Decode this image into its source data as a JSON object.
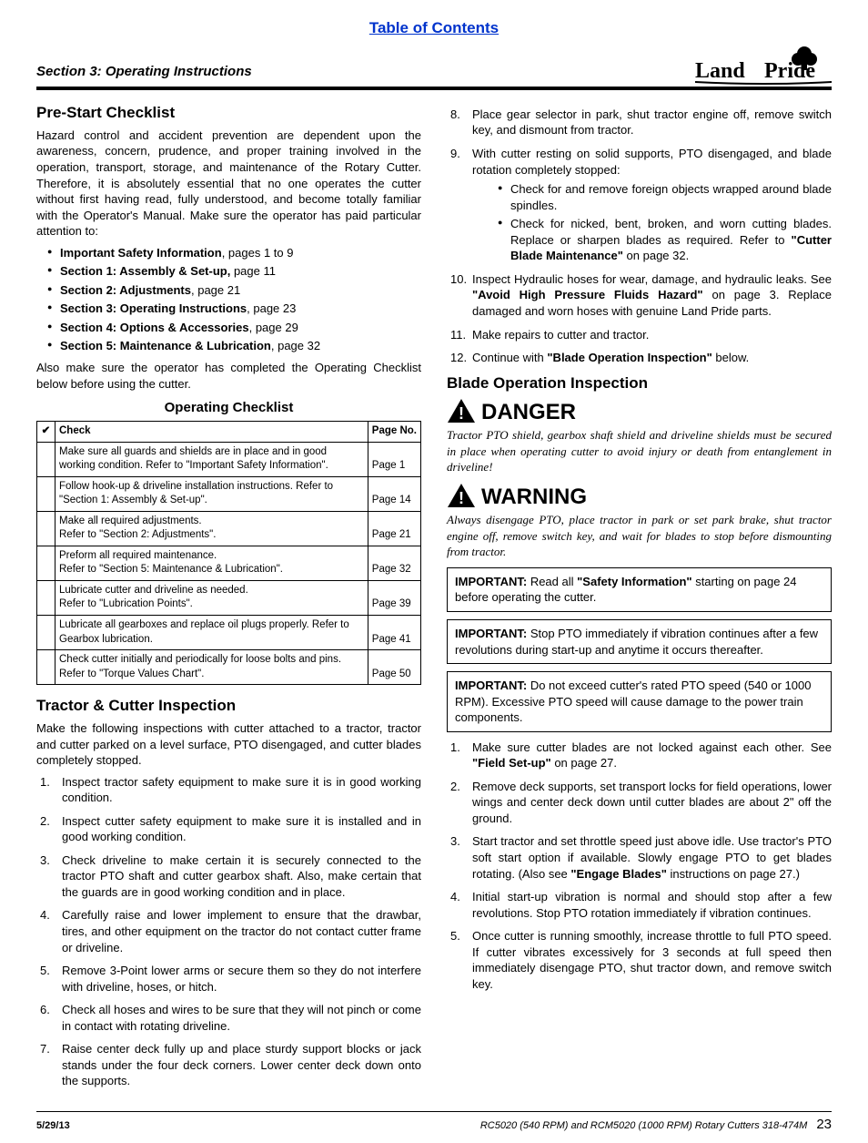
{
  "toc_link": "Table of Contents",
  "section_label": "Section 3: Operating Instructions",
  "logo_text": "Land Pride",
  "colors": {
    "link": "#0033cc",
    "rule": "#000000",
    "text": "#000000",
    "bg": "#ffffff"
  },
  "left": {
    "h1": "Pre-Start Checklist",
    "intro": "Hazard control and accident prevention are dependent upon the awareness, concern, prudence, and proper training involved in the operation, transport, storage, and maintenance of the Rotary Cutter. Therefore, it is absolutely essential that no one operates the cutter without first having read, fully understood, and become totally familiar with the Operator's Manual. Make sure the operator has paid particular attention to:",
    "bullets": [
      {
        "bold": "Important Safety Information",
        "rest": ", pages 1 to 9"
      },
      {
        "bold": "Section 1: Assembly & Set-up,",
        "rest": " page 11"
      },
      {
        "bold": "Section 2: Adjustments",
        "rest": ", page 21"
      },
      {
        "bold": "Section 3: Operating Instructions",
        "rest": ", page 23"
      },
      {
        "bold": "Section 4: Options & Accessories",
        "rest": ", page 29"
      },
      {
        "bold": "Section 5: Maintenance & Lubrication",
        "rest": ", page 32"
      }
    ],
    "after_bullets": "Also make sure the operator has completed the Operating Checklist below before using the cutter.",
    "checklist_title": "Operating Checklist",
    "checklist_headers": {
      "chk": "✔",
      "item": "Check",
      "page": "Page No."
    },
    "checklist_rows": [
      {
        "item": "Make sure all guards and shields are in place and in good working condition. Refer to \"Important Safety Information\".",
        "page": "Page 1"
      },
      {
        "item": "Follow hook-up & driveline installation instructions. Refer to \"Section 1: Assembly & Set-up\".",
        "page": "Page 14"
      },
      {
        "item": "Make all required adjustments.\nRefer to \"Section 2: Adjustments\".",
        "page": "Page 21"
      },
      {
        "item": "Preform all required maintenance.\nRefer to \"Section 5: Maintenance & Lubrication\".",
        "page": "Page 32"
      },
      {
        "item": "Lubricate cutter and driveline as needed.\nRefer to \"Lubrication Points\".",
        "page": "Page 39"
      },
      {
        "item": "Lubricate all gearboxes and replace oil plugs properly. Refer to Gearbox lubrication.",
        "page": "Page 41"
      },
      {
        "item": "Check cutter initially and periodically for loose bolts and pins. Refer to \"Torque Values Chart\".",
        "page": "Page 50"
      }
    ],
    "h2": "Tractor & Cutter Inspection",
    "inspect_intro": "Make the following inspections with cutter attached to a tractor, tractor and cutter parked on a level surface, PTO disengaged, and cutter blades completely stopped.",
    "inspect_list": [
      "Inspect tractor safety equipment to make sure it is in good working condition.",
      "Inspect cutter safety equipment to make sure it is installed and in good working condition.",
      "Check driveline to make certain it is securely connected to the tractor PTO shaft and cutter gearbox shaft. Also, make certain that the guards are in good working condition and in place.",
      "Carefully raise and lower implement to ensure that the drawbar, tires, and other equipment on the tractor do not contact cutter frame or driveline.",
      "Remove 3-Point lower arms or secure them so they do not interfere with driveline, hoses, or hitch.",
      "Check all hoses and wires to be sure that they will not pinch or come in contact with rotating driveline.",
      "Raise center deck fully up and place sturdy support blocks or jack stands under the four deck corners. Lower center deck down onto the supports."
    ]
  },
  "right": {
    "inspect_list_cont_start": 8,
    "inspect_list_cont": [
      "Place gear selector in park, shut tractor engine off, remove switch key, and dismount from tractor.",
      "With cutter resting on solid supports, PTO disengaged, and blade rotation completely stopped:"
    ],
    "item9_sub": [
      "Check for and remove foreign objects wrapped around blade spindles.",
      {
        "pre": "Check for nicked, bent, broken, and worn cutting blades. Replace or sharpen blades as required. Refer to ",
        "bold": "\"Cutter Blade Maintenance\"",
        "post": " on page 32."
      }
    ],
    "inspect_list_cont2": [
      {
        "pre": "Inspect Hydraulic hoses for wear, damage, and hydraulic leaks. See ",
        "bold": "\"Avoid High Pressure Fluids Hazard\"",
        "post": " on page 3. Replace damaged and worn hoses with genuine Land Pride parts."
      },
      "Make repairs to cutter and tractor.",
      {
        "pre": "Continue with ",
        "bold": "\"Blade Operation Inspection\"",
        "post": " below."
      }
    ],
    "h3": "Blade Operation Inspection",
    "danger_word": "DANGER",
    "danger_text": "Tractor PTO shield, gearbox shaft shield and driveline shields must be secured in place when operating cutter to avoid injury or death from entanglement in driveline!",
    "warning_word": "WARNING",
    "warning_text": "Always disengage PTO, place tractor in park or set park brake, shut tractor engine off, remove switch key, and wait for blades to stop before dismounting from tractor.",
    "important1": {
      "label": "IMPORTANT:",
      "text": " Read all ",
      "bold": "\"Safety Information\"",
      "post": " starting on page 24 before operating the cutter."
    },
    "important2": {
      "label": "IMPORTANT:",
      "text": " Stop PTO immediately if vibration continues after a few revolutions during start-up and anytime it occurs thereafter."
    },
    "important3": {
      "label": "IMPORTANT:",
      "text": " Do not exceed cutter's rated PTO speed (540 or 1000 RPM). Excessive PTO speed will cause damage to the power train components."
    },
    "blade_list": [
      {
        "pre": "Make sure cutter blades are not locked against each other. See ",
        "bold": "\"Field Set-up\"",
        "post": " on page 27."
      },
      "Remove deck supports, set transport locks for field operations, lower wings and center deck down until cutter blades are about 2\" off the ground.",
      {
        "pre": "Start tractor and set throttle speed just above idle. Use tractor's PTO soft start option if available. Slowly engage PTO to get blades rotating. (Also see ",
        "bold": "\"Engage Blades\"",
        "post": " instructions on page 27.)"
      },
      "Initial start-up vibration is normal and should stop after a few revolutions. Stop PTO rotation immediately if vibration continues.",
      "Once cutter is running smoothly, increase throttle to full PTO speed. If cutter vibrates excessively for 3 seconds at full speed then immediately disengage PTO, shut tractor down, and remove switch key."
    ]
  },
  "footer": {
    "date": "5/29/13",
    "title": "RC5020 (540 RPM) and RCM5020 (1000 RPM) Rotary Cutters   318-474M",
    "page": "23"
  }
}
